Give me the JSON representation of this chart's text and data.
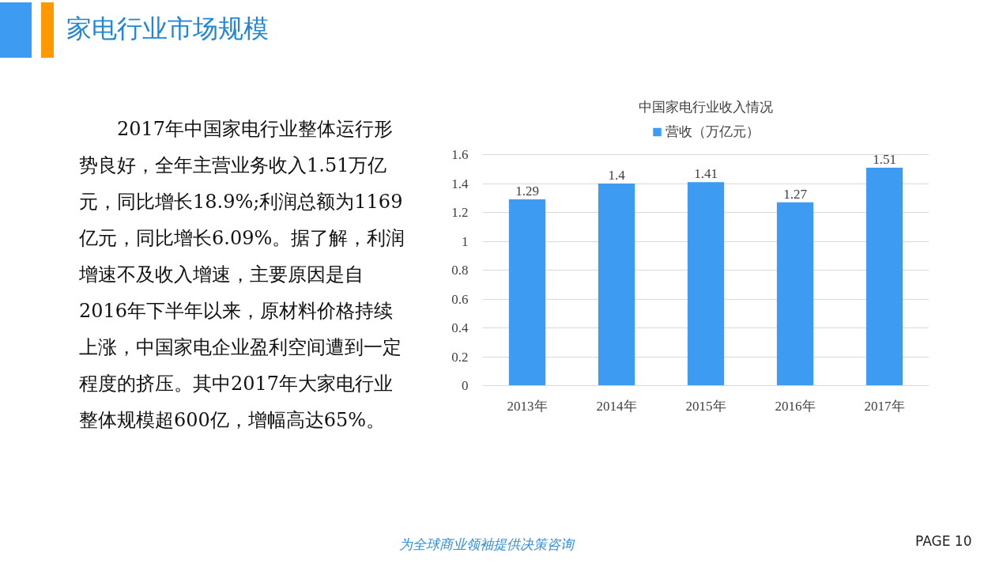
{
  "chart_data": {
    "type": "bar",
    "title": "中国家电行业收入情况",
    "categories": [
      "2013年",
      "2014年",
      "2015年",
      "2016年",
      "2017年"
    ],
    "series": [
      {
        "name": "营收（万亿元）",
        "color": "#3d9bf2",
        "values": [
          1.29,
          1.4,
          1.41,
          1.27,
          1.51
        ]
      }
    ],
    "ylim": [
      0,
      1.6
    ],
    "yticks": [
      0,
      0.2,
      0.4,
      0.6,
      0.8,
      1,
      1.2,
      1.4,
      1.6
    ],
    "grid": "y",
    "legend": "top",
    "data_labels": true,
    "annotations": [
      "家电行业市场规模",
      "2017年中国家电行业整体运行形势良好，全年主营业务收入1.51万亿元，同比增长18.9%;利润总额为1169亿元，同比增长6.09%。据了解，利润增速不及收入增速，主要原因是自2016年下半年以来，原材料价格持续上涨，中国家电企业盈利空间遭到一定程度的挤压。其中2017年大家电行业整体规模超600亿，增幅高达65%。",
      "为全球商业领袖提供决策咨询",
      "PAGE 10"
    ]
  }
}
